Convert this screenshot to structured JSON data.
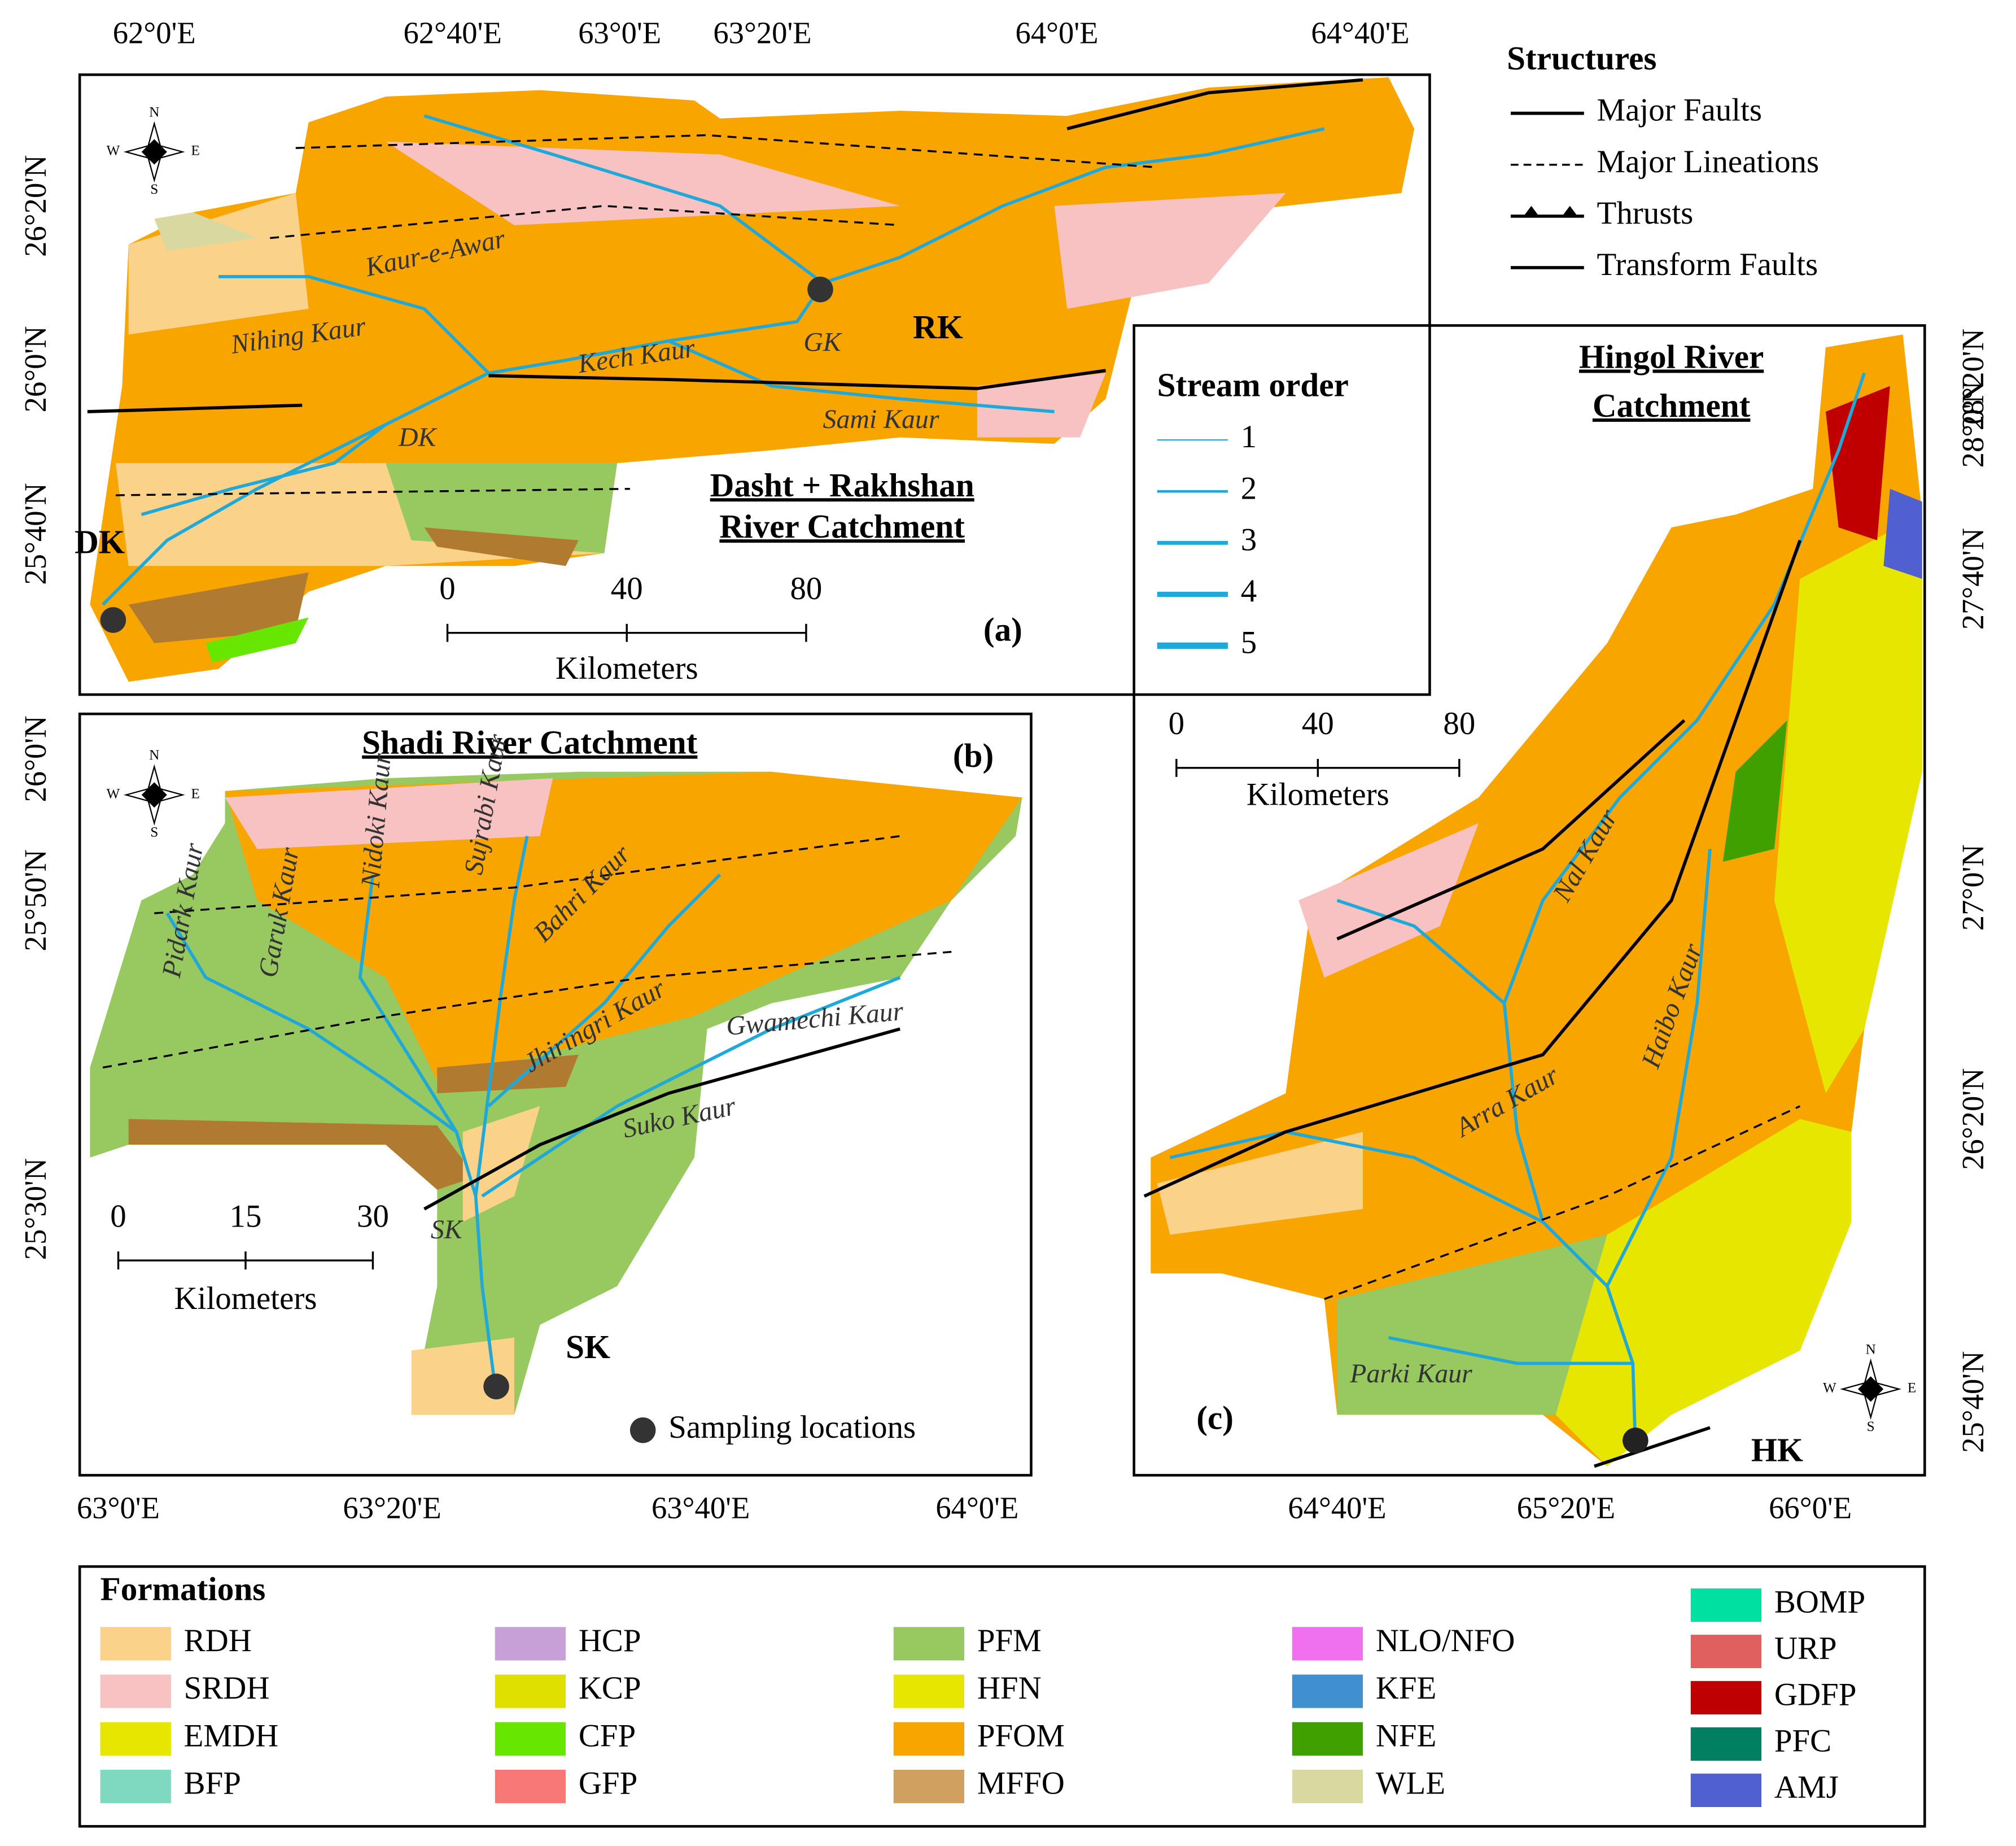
{
  "panel_a": {
    "label": "(a)",
    "title": [
      "Dasht + Rakhshan",
      "River Catchment"
    ],
    "lon_ticks": [
      "62°0'E",
      "62°40'E",
      "63°0'E",
      "63°20'E",
      "64°0'E",
      "64°40'E"
    ],
    "lat_ticks": [
      "26°20'N",
      "26°0'N",
      "25°40'N"
    ],
    "scale": {
      "ticks": [
        "0",
        "40",
        "80"
      ],
      "unit": "Kilometers"
    },
    "sites": [
      "DK",
      "RK"
    ],
    "rivers": [
      "Kaur-e-Awar",
      "Nihing Kaur",
      "Kech Kaur",
      "GK",
      "DK",
      "Sami Kaur"
    ]
  },
  "panel_b": {
    "label": "(b)",
    "title": "Shadi River Catchment",
    "lon_ticks": [
      "63°0'E",
      "63°20'E",
      "63°40'E",
      "64°0'E"
    ],
    "lat_ticks": [
      "26°0'N",
      "25°50'N",
      "25°30'N"
    ],
    "scale": {
      "ticks": [
        "0",
        "15",
        "30"
      ],
      "unit": "Kilometers"
    },
    "sites": [
      "SK"
    ],
    "rivers": [
      "Pidark Kaur",
      "Garuk Kaur",
      "Nidoki Kaur",
      "Sujrabi Kaur",
      "Bahri Kaur",
      "Jhiringri Kaur",
      "Gwamechi Kaur",
      "Suko Kaur",
      "SK"
    ]
  },
  "panel_c": {
    "label": "(c)",
    "title": [
      "Hingol River",
      "Catchment"
    ],
    "lon_ticks": [
      "64°40'E",
      "65°20'E",
      "66°0'E"
    ],
    "lat_ticks": [
      "28°20'N",
      "28°0'N",
      "27°40'N",
      "27°0'N",
      "26°20'N",
      "25°40'N"
    ],
    "scale": {
      "ticks": [
        "0",
        "40",
        "80"
      ],
      "unit": "Kilometers"
    },
    "sites": [
      "HK"
    ],
    "rivers": [
      "Nal Kaur",
      "Haibo Kaur",
      "Arra Kaur",
      "Parki Kaur"
    ]
  },
  "compass": {
    "n": "N",
    "s": "S",
    "e": "E",
    "w": "W"
  },
  "structures": {
    "title": "Structures",
    "items": [
      "Major Faults",
      "Major Lineations",
      "Thrusts",
      "Transform Faults"
    ]
  },
  "stream_order": {
    "title": "Stream order",
    "items": [
      "1",
      "2",
      "3",
      "4",
      "5"
    ]
  },
  "sampling": "Sampling locations",
  "formations": {
    "title": "Formations",
    "items": [
      {
        "name": "RDH",
        "color": "#fbd28a"
      },
      {
        "name": "SRDH",
        "color": "#f8c2c2"
      },
      {
        "name": "EMDH",
        "color": "#e6e600"
      },
      {
        "name": "BFP",
        "color": "#7fd8c0"
      },
      {
        "name": "HCP",
        "color": "#c8a0d8"
      },
      {
        "name": "KCP",
        "color": "#e0e000"
      },
      {
        "name": "CFP",
        "color": "#66e600"
      },
      {
        "name": "GFP",
        "color": "#f87878"
      },
      {
        "name": "PFM",
        "color": "#98c860"
      },
      {
        "name": "HFN",
        "color": "#e6e600"
      },
      {
        "name": "PFOM",
        "color": "#f8a500"
      },
      {
        "name": "MFFO",
        "color": "#d0a060"
      },
      {
        "name": "NLO/NFO",
        "color": "#f070f0"
      },
      {
        "name": "KFE",
        "color": "#4090d0"
      },
      {
        "name": "NFE",
        "color": "#40a000"
      },
      {
        "name": "WLE",
        "color": "#d8d8a0"
      },
      {
        "name": "BOMP",
        "color": "#00e0a0"
      },
      {
        "name": "URP",
        "color": "#e06060"
      },
      {
        "name": "GDFP",
        "color": "#c00000"
      },
      {
        "name": "PFC",
        "color": "#008060"
      },
      {
        "name": "AMJ",
        "color": "#5060d0"
      }
    ]
  }
}
